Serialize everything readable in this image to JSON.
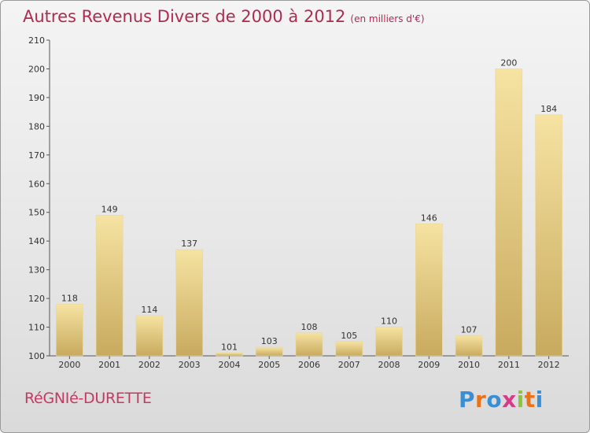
{
  "header": {
    "title": "Autres Revenus Divers de 2000 à 2012",
    "subtitle": "(en milliers d'€)"
  },
  "footer": {
    "place_name": "RéGNIé-DURETTE",
    "logo_text": "Proxiti",
    "logo_colors": [
      "#3a8fd4",
      "#e8731a",
      "#3a8fd4",
      "#d63a8a",
      "#8cc43c",
      "#e8731a",
      "#3a8fd4"
    ]
  },
  "colors": {
    "accent": "#b02a52",
    "bar_light": "#f6e3a2",
    "bar_dark": "#c8aa5e"
  },
  "chart_data": {
    "type": "bar",
    "categories": [
      "2000",
      "2001",
      "2002",
      "2003",
      "2004",
      "2005",
      "2006",
      "2007",
      "2008",
      "2009",
      "2010",
      "2011",
      "2012"
    ],
    "values": [
      118,
      149,
      114,
      137,
      101,
      103,
      108,
      105,
      110,
      146,
      107,
      200,
      184
    ],
    "title": "Autres Revenus Divers de 2000 à 2012",
    "xlabel": "",
    "ylabel": "",
    "ylim": [
      100,
      210
    ],
    "yticks": [
      100,
      110,
      120,
      130,
      140,
      150,
      160,
      170,
      180,
      190,
      200,
      210
    ],
    "grid": false,
    "data_labels": true
  }
}
